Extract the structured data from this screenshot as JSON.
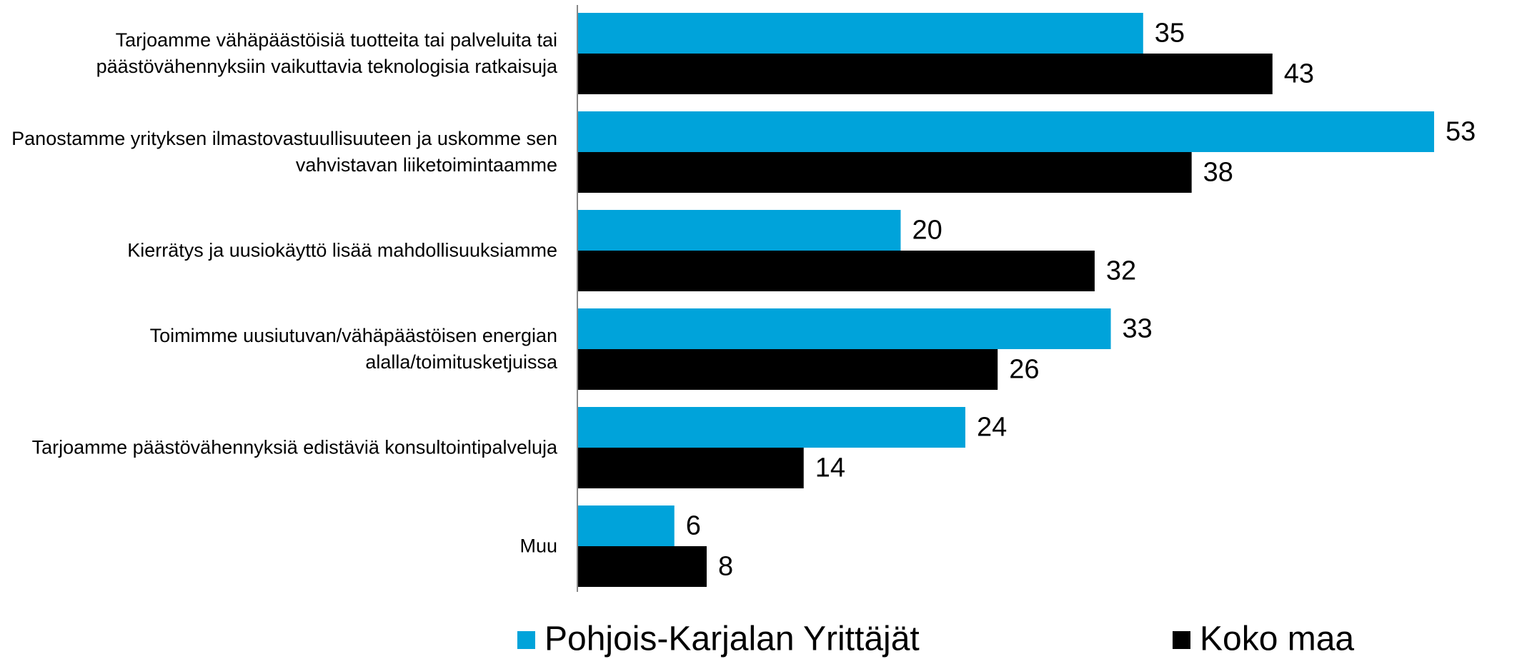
{
  "chart_data": {
    "type": "bar",
    "orientation": "horizontal",
    "categories": [
      "Tarjoamme vähäpäästöisiä tuotteita tai palveluita tai päästövähennyksiin vaikuttavia teknologisia ratkaisuja",
      "Panostamme yrityksen ilmastovastuullisuuteen ja uskomme sen vahvistavan liiketoimintaamme",
      "Kierrätys ja uusiokäyttö lisää mahdollisuuksiamme",
      "Toimimme uusiutuvan/vähäpäästöisen energian alalla/toimitusketjuissa",
      "Tarjoamme päästövähennyksiä edistäviä konsultointipalveluja",
      "Muu"
    ],
    "series": [
      {
        "name": "Pohjois-Karjalan Yrittäjät",
        "color": "#00a3da",
        "values": [
          35,
          53,
          20,
          33,
          24,
          6
        ]
      },
      {
        "name": "Koko maa",
        "color": "#000000",
        "values": [
          43,
          38,
          32,
          26,
          14,
          8
        ]
      }
    ],
    "xlim": [
      0,
      55
    ],
    "legend": "bottom"
  }
}
